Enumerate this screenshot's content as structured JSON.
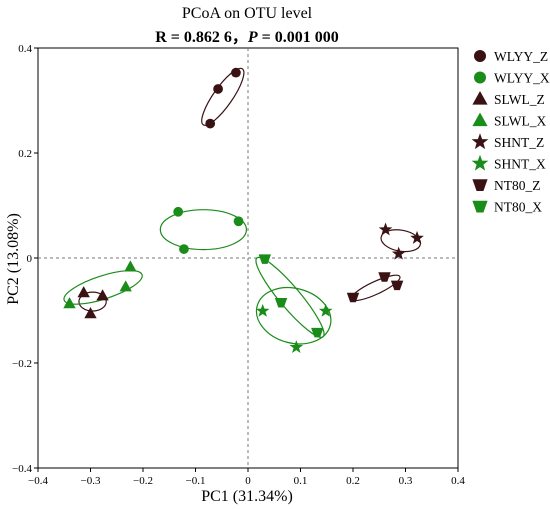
{
  "chart_data": {
    "type": "scatter",
    "title": "PCoA on OTU level",
    "subtitle": {
      "r_label": "R = 0.862 6",
      "sep": "，",
      "p_var": "P",
      "p_value": " = 0.001 000"
    },
    "xlabel": "PC1 (31.34%)",
    "ylabel": "PC2 (13.08%)",
    "xlim": [
      -0.4,
      0.4
    ],
    "ylim": [
      -0.4,
      0.4
    ],
    "xticks": [
      -0.4,
      -0.3,
      -0.2,
      -0.1,
      0,
      0.1,
      0.2,
      0.3,
      0.4
    ],
    "yticks": [
      -0.4,
      -0.2,
      0,
      0.2,
      0.4
    ],
    "xtick_labels": [
      "−0.4",
      "−0.3",
      "−0.2",
      "−0.1",
      "0",
      "0.1",
      "0.2",
      "0.3",
      "0.4"
    ],
    "ytick_labels": [
      "−0.4",
      "−0.2",
      "0",
      "0.2",
      "0.4"
    ],
    "reference_lines": {
      "x": 0,
      "y": 0,
      "style": "dashed"
    },
    "legend_position": "right",
    "colors": {
      "dark": "#3a1214",
      "green": "#1a8c1a"
    },
    "series": [
      {
        "name": "WLYY_Z",
        "marker": "circle",
        "color": "#3a1214",
        "points": [
          [
            -0.072,
            0.256
          ],
          [
            -0.057,
            0.322
          ],
          [
            -0.023,
            0.353
          ]
        ],
        "ellipse": {
          "center": [
            -0.048,
            0.307
          ],
          "rx": 0.065,
          "ry": 0.018,
          "angle_deg": 55
        }
      },
      {
        "name": "WLYY_X",
        "marker": "circle",
        "color": "#1a8c1a",
        "points": [
          [
            -0.133,
            0.088
          ],
          [
            -0.122,
            0.017
          ],
          [
            -0.018,
            0.07
          ]
        ],
        "ellipse": {
          "center": [
            -0.085,
            0.054
          ],
          "rx": 0.082,
          "ry": 0.038,
          "angle_deg": 0
        }
      },
      {
        "name": "SLWL_Z",
        "marker": "triangle",
        "color": "#3a1214",
        "points": [
          [
            -0.313,
            -0.066
          ],
          [
            -0.3,
            -0.106
          ],
          [
            -0.277,
            -0.072
          ]
        ],
        "ellipse": {
          "center": [
            -0.296,
            -0.083
          ],
          "rx": 0.026,
          "ry": 0.018,
          "angle_deg": 0
        }
      },
      {
        "name": "SLWL_X",
        "marker": "triangle",
        "color": "#1a8c1a",
        "points": [
          [
            -0.34,
            -0.087
          ],
          [
            -0.233,
            -0.055
          ],
          [
            -0.224,
            -0.017
          ]
        ],
        "ellipse": {
          "center": [
            -0.276,
            -0.056
          ],
          "rx": 0.078,
          "ry": 0.022,
          "angle_deg": 18
        }
      },
      {
        "name": "SHNT_Z",
        "marker": "star",
        "color": "#3a1214",
        "points": [
          [
            0.262,
            0.054
          ],
          [
            0.287,
            0.008
          ],
          [
            0.322,
            0.038
          ]
        ],
        "ellipse": {
          "center": [
            0.291,
            0.033
          ],
          "rx": 0.038,
          "ry": 0.02,
          "angle_deg": -10
        }
      },
      {
        "name": "SHNT_X",
        "marker": "star",
        "color": "#1a8c1a",
        "points": [
          [
            0.028,
            -0.101
          ],
          [
            0.092,
            -0.17
          ],
          [
            0.148,
            -0.101
          ]
        ],
        "ellipse": {
          "center": [
            0.087,
            -0.11
          ],
          "rx": 0.072,
          "ry": 0.052,
          "angle_deg": -15
        }
      },
      {
        "name": "NT80_Z",
        "marker": "inverted-triangle",
        "color": "#3a1214",
        "points": [
          [
            0.2,
            -0.075
          ],
          [
            0.26,
            -0.036
          ],
          [
            0.284,
            -0.052
          ]
        ],
        "ellipse": {
          "center": [
            0.243,
            -0.057
          ],
          "rx": 0.051,
          "ry": 0.012,
          "angle_deg": 25
        }
      },
      {
        "name": "NT80_X",
        "marker": "inverted-triangle",
        "color": "#1a8c1a",
        "points": [
          [
            0.032,
            -0.002
          ],
          [
            0.063,
            -0.085
          ],
          [
            0.132,
            -0.142
          ]
        ],
        "ellipse": {
          "center": [
            0.08,
            -0.075
          ],
          "rx": 0.098,
          "ry": 0.02,
          "angle_deg": -50
        }
      }
    ]
  }
}
